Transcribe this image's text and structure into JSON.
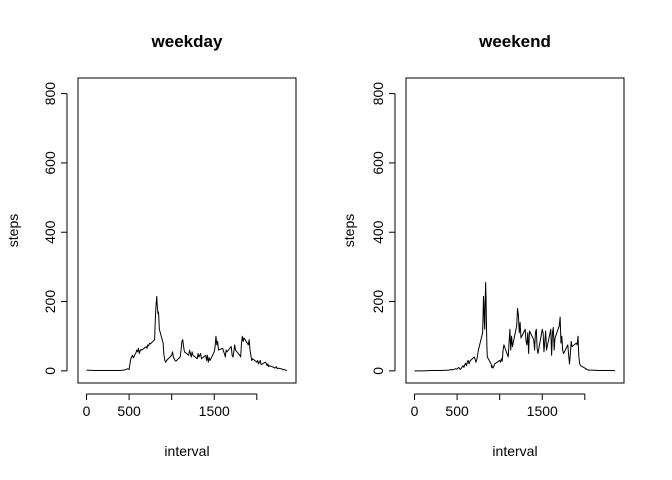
{
  "chart_data": [
    {
      "type": "line",
      "title": "weekday",
      "xlabel": "interval",
      "ylabel": "steps",
      "xlim": [
        -100,
        2460
      ],
      "ylim": [
        -35,
        845
      ],
      "xticks": [
        0,
        500,
        1000,
        1500,
        2000
      ],
      "xtick_labels": [
        "0",
        "500",
        "",
        "1500",
        ""
      ],
      "yticks": [
        0,
        200,
        400,
        600,
        800
      ],
      "ytick_labels": [
        "0",
        "200",
        "400",
        "600",
        "800"
      ],
      "series": [
        {
          "x": [
            0,
            100,
            200,
            300,
            400,
            430,
            450,
            480,
            500,
            510,
            520,
            530,
            540,
            550,
            560,
            570,
            580,
            590,
            600,
            610,
            620,
            630,
            640,
            650,
            700,
            710,
            720,
            730,
            740,
            750,
            800,
            805,
            810,
            815,
            820,
            825,
            830,
            835,
            840,
            845,
            850,
            855,
            900,
            905,
            910,
            920,
            930,
            940,
            1000,
            1010,
            1020,
            1030,
            1040,
            1050,
            1100,
            1110,
            1120,
            1130,
            1140,
            1150,
            1200,
            1210,
            1220,
            1230,
            1240,
            1250,
            1300,
            1310,
            1320,
            1330,
            1340,
            1350,
            1400,
            1410,
            1420,
            1430,
            1440,
            1450,
            1500,
            1510,
            1520,
            1530,
            1540,
            1550,
            1600,
            1610,
            1620,
            1630,
            1640,
            1650,
            1700,
            1710,
            1720,
            1730,
            1740,
            1750,
            1800,
            1810,
            1820,
            1830,
            1840,
            1850,
            1900,
            1910,
            1920,
            1930,
            1940,
            1950,
            2000,
            2010,
            2020,
            2030,
            2040,
            2050,
            2100,
            2110,
            2120,
            2130,
            2140,
            2150,
            2200,
            2210,
            2220,
            2230,
            2240,
            2250,
            2300,
            2310,
            2320,
            2330,
            2340,
            2355
          ],
          "y": [
            2,
            1,
            1,
            1,
            1,
            2,
            3,
            6,
            4,
            20,
            35,
            40,
            45,
            38,
            42,
            48,
            52,
            60,
            55,
            65,
            50,
            58,
            62,
            60,
            70,
            65,
            75,
            72,
            80,
            78,
            90,
            130,
            160,
            185,
            200,
            215,
            190,
            175,
            165,
            170,
            150,
            120,
            80,
            60,
            45,
            30,
            25,
            30,
            45,
            55,
            40,
            35,
            30,
            28,
            40,
            60,
            85,
            90,
            70,
            55,
            45,
            60,
            50,
            40,
            55,
            45,
            35,
            50,
            40,
            45,
            50,
            35,
            45,
            30,
            45,
            25,
            38,
            30,
            55,
            70,
            100,
            75,
            85,
            60,
            65,
            55,
            50,
            40,
            60,
            55,
            70,
            45,
            40,
            55,
            75,
            60,
            45,
            40,
            80,
            100,
            85,
            95,
            75,
            90,
            60,
            45,
            30,
            35,
            25,
            30,
            20,
            25,
            30,
            18,
            25,
            22,
            15,
            20,
            12,
            15,
            10,
            8,
            10,
            12,
            6,
            8,
            5,
            3,
            4,
            3,
            2,
            1
          ]
        }
      ]
    },
    {
      "type": "line",
      "title": "weekend",
      "xlabel": "interval",
      "ylabel": "steps",
      "xlim": [
        -100,
        2460
      ],
      "ylim": [
        -35,
        845
      ],
      "xticks": [
        0,
        500,
        1000,
        1500,
        2000
      ],
      "xtick_labels": [
        "0",
        "500",
        "",
        "1500",
        ""
      ],
      "yticks": [
        0,
        200,
        400,
        600,
        800
      ],
      "ytick_labels": [
        "0",
        "200",
        "400",
        "600",
        "800"
      ],
      "series": [
        {
          "x": [
            0,
            100,
            200,
            300,
            400,
            430,
            450,
            480,
            500,
            510,
            520,
            530,
            540,
            550,
            560,
            570,
            580,
            590,
            600,
            610,
            620,
            630,
            640,
            650,
            700,
            710,
            720,
            730,
            740,
            750,
            800,
            805,
            810,
            815,
            820,
            825,
            830,
            835,
            840,
            845,
            850,
            855,
            900,
            905,
            910,
            920,
            930,
            940,
            1000,
            1010,
            1020,
            1030,
            1040,
            1050,
            1100,
            1110,
            1120,
            1130,
            1140,
            1150,
            1200,
            1210,
            1220,
            1230,
            1240,
            1250,
            1300,
            1310,
            1320,
            1330,
            1340,
            1350,
            1400,
            1410,
            1420,
            1430,
            1440,
            1450,
            1500,
            1510,
            1520,
            1530,
            1540,
            1550,
            1600,
            1610,
            1620,
            1630,
            1640,
            1650,
            1700,
            1710,
            1720,
            1730,
            1740,
            1750,
            1800,
            1810,
            1820,
            1830,
            1840,
            1850,
            1900,
            1910,
            1920,
            1930,
            1940,
            1950,
            2000,
            2010,
            2020,
            2030,
            2040,
            2050,
            2100,
            2110,
            2120,
            2130,
            2140,
            2150,
            2200,
            2210,
            2220,
            2230,
            2240,
            2250,
            2300,
            2310,
            2320,
            2330,
            2340,
            2355
          ],
          "y": [
            0,
            0,
            1,
            1,
            2,
            4,
            3,
            6,
            5,
            8,
            10,
            6,
            4,
            8,
            12,
            15,
            10,
            18,
            22,
            15,
            25,
            30,
            20,
            28,
            40,
            35,
            25,
            30,
            45,
            60,
            110,
            160,
            215,
            190,
            140,
            120,
            200,
            255,
            210,
            130,
            70,
            40,
            20,
            10,
            15,
            8,
            12,
            20,
            30,
            25,
            35,
            28,
            60,
            75,
            40,
            80,
            120,
            60,
            100,
            70,
            130,
            180,
            160,
            110,
            140,
            95,
            120,
            85,
            75,
            110,
            50,
            115,
            90,
            60,
            110,
            120,
            65,
            50,
            120,
            110,
            55,
            85,
            115,
            60,
            120,
            45,
            110,
            125,
            60,
            95,
            130,
            155,
            80,
            100,
            60,
            50,
            75,
            45,
            20,
            50,
            85,
            70,
            80,
            75,
            100,
            40,
            20,
            15,
            8,
            5,
            6,
            3,
            2,
            2,
            2,
            1,
            2,
            2,
            1,
            1,
            1,
            1,
            1,
            1,
            1,
            1,
            1,
            1,
            1,
            1,
            1,
            0
          ]
        }
      ]
    }
  ]
}
